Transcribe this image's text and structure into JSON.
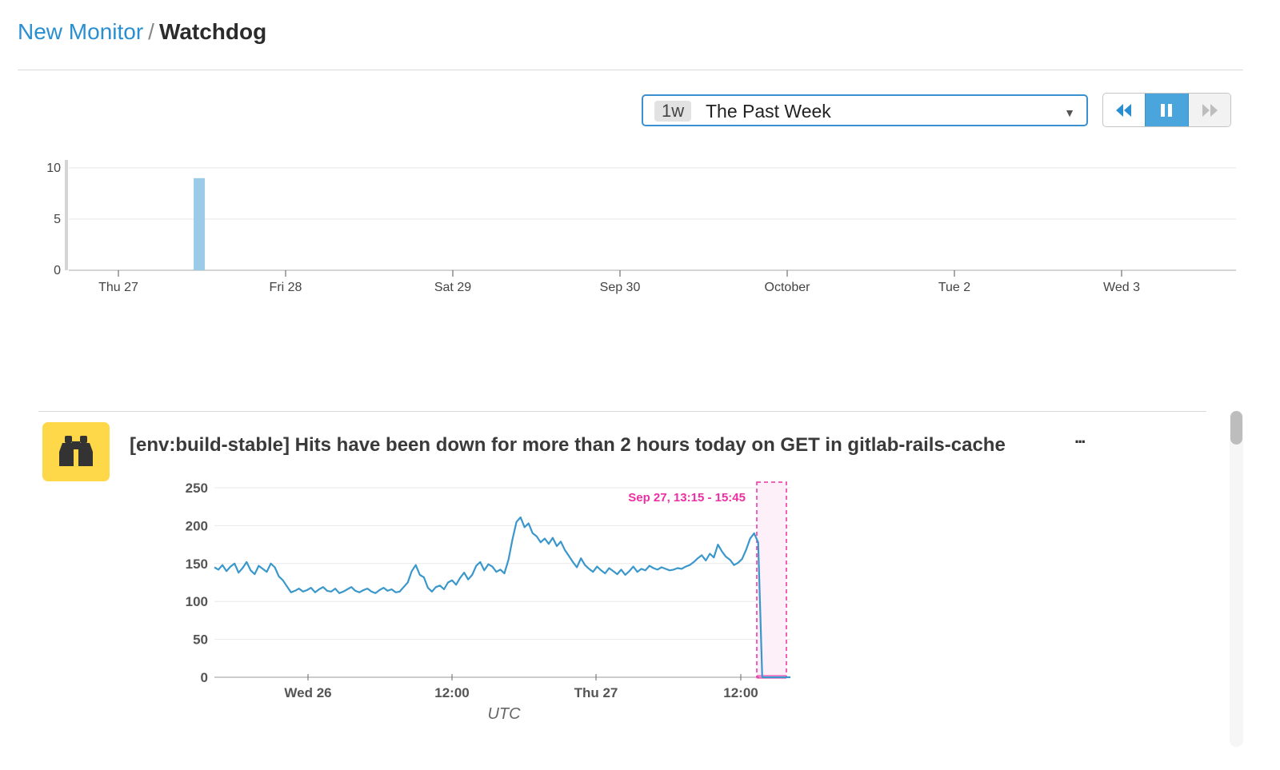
{
  "breadcrumb": {
    "parent": "New Monitor",
    "separator": "/",
    "current": "Watchdog"
  },
  "timeframe": {
    "badge": "1w",
    "label": "The Past Week"
  },
  "playback": {
    "buttons": [
      {
        "icon": "rewind-icon",
        "state": "normal"
      },
      {
        "icon": "pause-icon",
        "state": "active"
      },
      {
        "icon": "fast-forward-icon",
        "state": "disabled"
      }
    ]
  },
  "colors": {
    "accent": "#49a5dc",
    "link": "#2a8fd0",
    "bar": "#9ccbe8",
    "line": "#3a97cc",
    "highlight": "#ee2fa3",
    "icon_bg": "#ffd84a"
  },
  "event": {
    "icon": "binoculars-icon",
    "title": "[env:build-stable] Hits have been down for more than 2 hours today on GET in gitlab-rails-cache",
    "more": "..."
  },
  "chart_data": [
    {
      "type": "bar",
      "title": "",
      "xlabel": "",
      "ylabel": "",
      "yticks": [
        0,
        5,
        10
      ],
      "ylim": [
        0,
        10
      ],
      "xticks": [
        "Thu 27",
        "Fri 28",
        "Sat 29",
        "Sep 30",
        "October",
        "Tue 2",
        "Wed 3"
      ],
      "bars": [
        {
          "x": "Thu 27 ~18:00",
          "value": 9
        }
      ],
      "grid": true
    },
    {
      "type": "line",
      "title": "",
      "xlabel": "UTC",
      "ylabel": "",
      "yticks": [
        0,
        50,
        100,
        150,
        200,
        250
      ],
      "ylim": [
        0,
        250
      ],
      "xticks": [
        "Wed 26",
        "12:00",
        "Thu 27",
        "12:00"
      ],
      "highlight": {
        "label": "Sep 27, 13:15 - 15:45"
      },
      "series": [
        {
          "values": [
            145,
            142,
            148,
            140,
            146,
            150,
            138,
            144,
            152,
            141,
            136,
            147,
            143,
            139,
            150,
            145,
            133,
            128,
            120,
            112,
            114,
            117,
            113,
            115,
            118,
            112,
            116,
            119,
            114,
            113,
            117,
            111,
            113,
            116,
            119,
            114,
            112,
            115,
            117,
            113,
            111,
            115,
            118,
            114,
            116,
            112,
            113,
            119,
            125,
            140,
            148,
            135,
            132,
            118,
            113,
            119,
            121,
            116,
            125,
            128,
            122,
            131,
            138,
            129,
            135,
            147,
            152,
            141,
            149,
            146,
            139,
            142,
            137,
            155,
            182,
            205,
            211,
            198,
            203,
            190,
            186,
            178,
            183,
            176,
            184,
            173,
            179,
            168,
            160,
            152,
            145,
            157,
            148,
            143,
            139,
            146,
            141,
            137,
            144,
            140,
            136,
            142,
            135,
            140,
            146,
            139,
            143,
            141,
            147,
            144,
            142,
            145,
            143,
            141,
            142,
            144,
            143,
            146,
            148,
            152,
            157,
            161,
            154,
            163,
            158,
            175,
            166,
            159,
            155,
            148,
            151,
            156,
            168,
            183,
            190,
            178,
            0,
            0,
            0,
            0,
            0,
            0,
            0,
            0
          ]
        }
      ]
    }
  ]
}
